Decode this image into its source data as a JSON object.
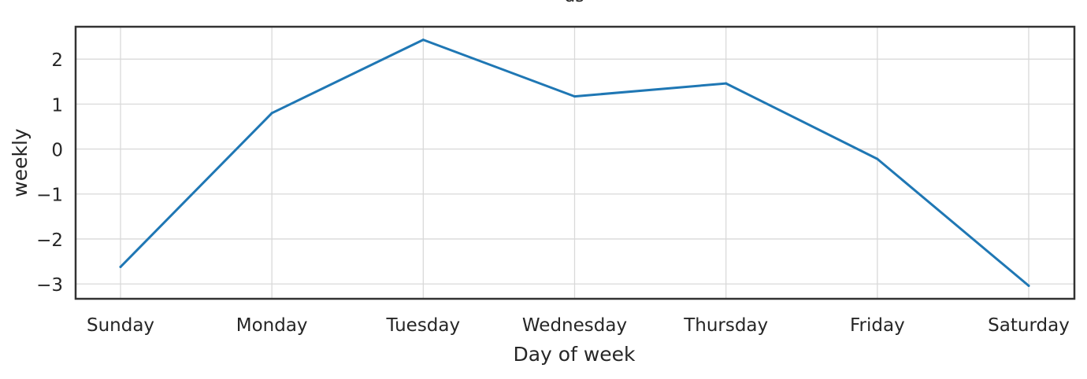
{
  "chart_data": {
    "type": "line",
    "title": "ds",
    "xlabel": "Day of week",
    "ylabel": "weekly",
    "categories": [
      "Sunday",
      "Monday",
      "Tuesday",
      "Wednesday",
      "Thursday",
      "Friday",
      "Saturday"
    ],
    "series": [
      {
        "values": [
          -2.62,
          0.8,
          2.43,
          1.17,
          1.46,
          -0.22,
          -3.04
        ],
        "color": "#1f77b4"
      }
    ],
    "yticks": [
      -3,
      -2,
      -1,
      0,
      1,
      2
    ],
    "ytick_labels": [
      "−3",
      "−2",
      "−1",
      "0",
      "1",
      "2"
    ],
    "ylim": [
      -3.33,
      2.72
    ],
    "grid": true,
    "legend": "none"
  }
}
